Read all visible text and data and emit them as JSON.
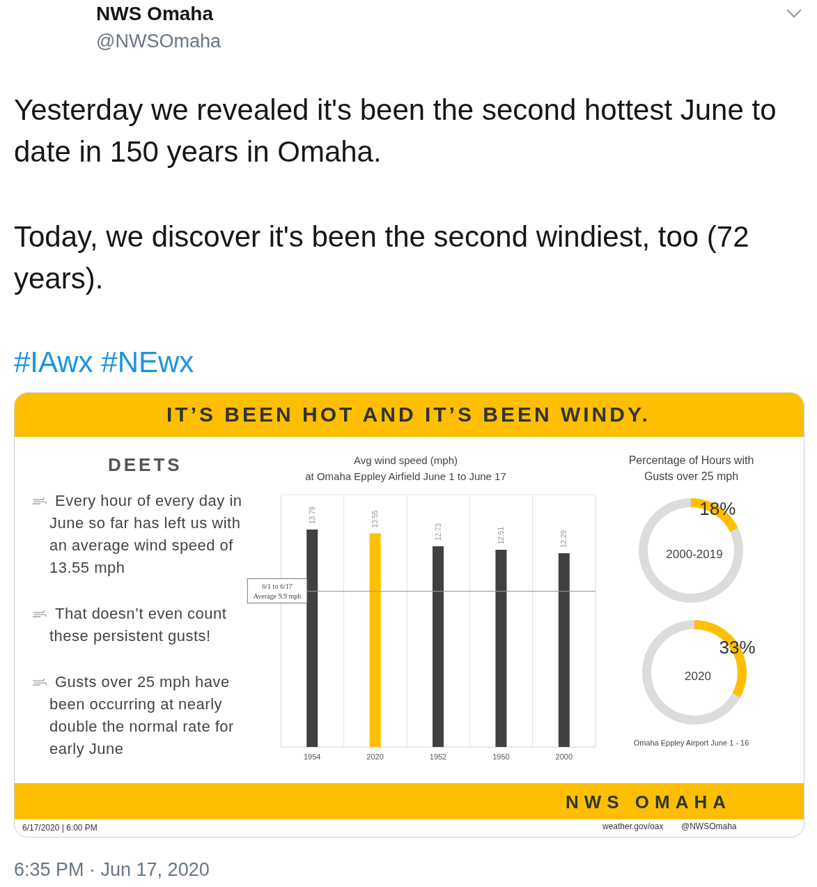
{
  "chart_data": [
    {
      "type": "other",
      "title": "NWS Omaha",
      "subtitle": "@NWSOmaha",
      "annotations": [
        "Yesterday we revealed it's been the second hottest June to date in 150 years in Omaha.",
        "Today, we discover it's been the second windiest, too (72 years).",
        "#IAwx #NEwx"
      ]
    },
    {
      "type": "other",
      "title": "IT’S BEEN HOT AND IT’S BEEN WINDY.",
      "subtitle": "DEETS",
      "annotations": [
        "Every hour of every day in June so far has left us with an average wind speed of 13.55 mph",
        "That doesn’t even count these persistent gusts!",
        "Gusts over 25 mph have been occurring at nearly double the normal rate for early June",
        "NWS OMAHA",
        "weather.gov/oax",
        "@NWSOmaha",
        "6/17/2020 | 6:00 PM"
      ]
    },
    {
      "type": "bar",
      "title": "Avg wind speed (mph)",
      "subtitle": "at Omaha Eppley Airfield June 1 to June 17",
      "categories": [
        "1954",
        "2020",
        "1952",
        "1950",
        "2000"
      ],
      "values": [
        13.79,
        13.55,
        12.73,
        12.51,
        12.29
      ],
      "colors": [
        "#404040",
        "#fdbf00",
        "#404040",
        "#404040",
        "#404040"
      ],
      "data_labels": true,
      "ylim": [
        0,
        16
      ],
      "tick_labels": "x",
      "grid": "x",
      "ref_lines": [
        {
          "axis": "y",
          "value": 9.9,
          "label": "6/1 to 6/17\nAverage 9.9 mph"
        }
      ]
    },
    {
      "type": "donut",
      "title": "Percentage of Hours with\nGusts over 25 mph",
      "subtitle": "2000-2019",
      "categories": [
        null,
        null
      ],
      "values": [
        18,
        82
      ],
      "colors": [
        "#fdbf00",
        "#dcdcdc"
      ],
      "value_labels": [
        "18%",
        null
      ]
    },
    {
      "type": "donut",
      "subtitle": "2020",
      "categories": [
        null,
        null
      ],
      "values": [
        33,
        67
      ],
      "colors": [
        "#fdbf00",
        "#dcdcdc"
      ],
      "value_labels": [
        "33%",
        null
      ],
      "annotations": [
        "Omaha Eppley Airport June 1 - 16"
      ]
    },
    {
      "type": "other",
      "annotations": [
        "6:35 PM · Jun 17, 2020"
      ]
    }
  ]
}
